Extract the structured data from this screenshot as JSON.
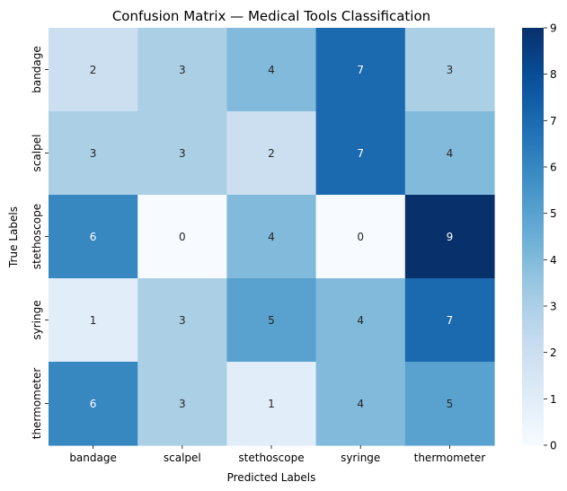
{
  "chart_data": {
    "type": "heatmap",
    "title": "Confusion Matrix — Medical Tools Classification",
    "xlabel": "Predicted Labels",
    "ylabel": "True Labels",
    "x_categories": [
      "bandage",
      "scalpel",
      "stethoscope",
      "syringe",
      "thermometer"
    ],
    "y_categories": [
      "bandage",
      "scalpel",
      "stethoscope",
      "syringe",
      "thermometer"
    ],
    "values": [
      [
        2,
        3,
        4,
        7,
        3
      ],
      [
        3,
        3,
        2,
        7,
        4
      ],
      [
        6,
        0,
        4,
        0,
        9
      ],
      [
        1,
        3,
        5,
        4,
        7
      ],
      [
        6,
        3,
        1,
        4,
        5
      ]
    ],
    "colorbar": {
      "min": 0,
      "max": 9,
      "ticks": [
        0,
        1,
        2,
        3,
        4,
        5,
        6,
        7,
        8,
        9
      ],
      "colormap": "Blues"
    },
    "annotate": true,
    "grid": false
  }
}
